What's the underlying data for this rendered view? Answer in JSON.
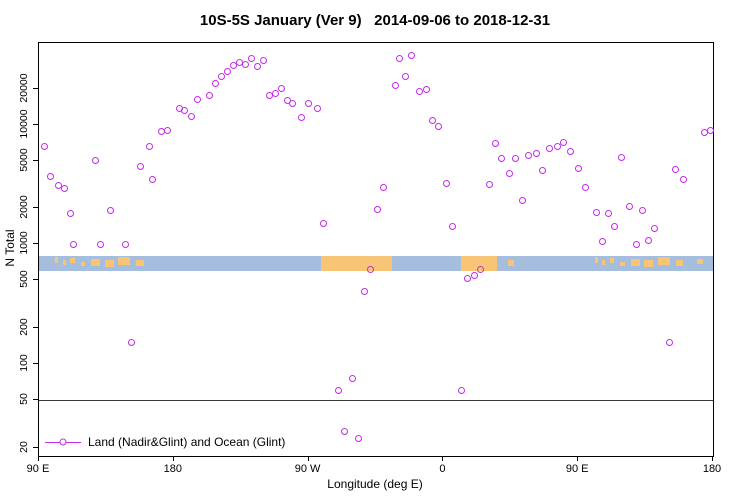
{
  "chart_data": {
    "type": "scatter",
    "title": "10S-5S January (Ver 9)   2014-09-06 to 2018-12-31",
    "xlabel": "Longitude (deg E)",
    "ylabel": "N Total",
    "legend": "Land (Nadir&Glint) and Ocean (Glint)",
    "marker_color": "#c32ce8",
    "log_y": true,
    "grid": false,
    "legend_position": "bottom-left",
    "xlim": [
      90,
      540
    ],
    "ylim": [
      17,
      48000
    ],
    "x_ticks": [
      {
        "pos": 90,
        "label": "90 E"
      },
      {
        "pos": 180,
        "label": "180"
      },
      {
        "pos": 270,
        "label": "90 W"
      },
      {
        "pos": 360,
        "label": "0"
      },
      {
        "pos": 450,
        "label": "90 E"
      },
      {
        "pos": 540,
        "label": "180"
      }
    ],
    "y_ticks": [
      {
        "value": 20,
        "label": "20"
      },
      {
        "value": 50,
        "label": "50"
      },
      {
        "value": 100,
        "label": "100"
      },
      {
        "value": 200,
        "label": "200"
      },
      {
        "value": 500,
        "label": "500"
      },
      {
        "value": 1000,
        "label": "1000"
      },
      {
        "value": 2000,
        "label": "2000"
      },
      {
        "value": 5000,
        "label": "5000"
      },
      {
        "value": 10000,
        "label": "10000"
      },
      {
        "value": 20000,
        "label": "20000"
      }
    ],
    "ref_line": 50,
    "band": {
      "y_from": 600,
      "y_to": 800,
      "ocean_color": "#a5bedd",
      "land_color": "#f8c476",
      "segments": [
        {
          "from": 101,
          "to": 103,
          "h": 0.35,
          "dy": 0.1
        },
        {
          "from": 106,
          "to": 108,
          "h": 0.3,
          "dy": 0.3
        },
        {
          "from": 111,
          "to": 114,
          "h": 0.35,
          "dy": 0.15
        },
        {
          "from": 118,
          "to": 121,
          "h": 0.3,
          "dy": 0.4
        },
        {
          "from": 125,
          "to": 131,
          "h": 0.45,
          "dy": 0.2
        },
        {
          "from": 134,
          "to": 140,
          "h": 0.5,
          "dy": 0.25
        },
        {
          "from": 143,
          "to": 151,
          "h": 0.5,
          "dy": 0.1
        },
        {
          "from": 155,
          "to": 160,
          "h": 0.35,
          "dy": 0.3
        },
        {
          "from": 278,
          "to": 326,
          "h": 1.0,
          "dy": 0
        },
        {
          "from": 372,
          "to": 396,
          "h": 1.0,
          "dy": 0
        },
        {
          "from": 403,
          "to": 407,
          "h": 0.4,
          "dy": 0.3
        },
        {
          "from": 461,
          "to": 463,
          "h": 0.35,
          "dy": 0.1
        },
        {
          "from": 466,
          "to": 468,
          "h": 0.3,
          "dy": 0.3
        },
        {
          "from": 471,
          "to": 474,
          "h": 0.35,
          "dy": 0.15
        },
        {
          "from": 478,
          "to": 481,
          "h": 0.3,
          "dy": 0.4
        },
        {
          "from": 485,
          "to": 491,
          "h": 0.45,
          "dy": 0.2
        },
        {
          "from": 494,
          "to": 500,
          "h": 0.5,
          "dy": 0.25
        },
        {
          "from": 503,
          "to": 511,
          "h": 0.5,
          "dy": 0.1
        },
        {
          "from": 515,
          "to": 520,
          "h": 0.35,
          "dy": 0.3
        },
        {
          "from": 529,
          "to": 533,
          "h": 0.35,
          "dy": 0.2
        }
      ]
    },
    "points": [
      [
        94,
        6500
      ],
      [
        98,
        3700
      ],
      [
        103,
        3100
      ],
      [
        107,
        2900
      ],
      [
        111,
        1800
      ],
      [
        113,
        990
      ],
      [
        128,
        5000
      ],
      [
        131,
        1000
      ],
      [
        138,
        1900
      ],
      [
        148,
        1000
      ],
      [
        152,
        150
      ],
      [
        158,
        4500
      ],
      [
        164,
        6500
      ],
      [
        166,
        3500
      ],
      [
        172,
        8700
      ],
      [
        176,
        8900
      ],
      [
        184,
        13500
      ],
      [
        187,
        13100
      ],
      [
        192,
        11700
      ],
      [
        196,
        16200
      ],
      [
        204,
        17500
      ],
      [
        208,
        22000
      ],
      [
        212,
        25300
      ],
      [
        216,
        27800
      ],
      [
        220,
        31200
      ],
      [
        224,
        33100
      ],
      [
        228,
        32000
      ],
      [
        232,
        35800
      ],
      [
        236,
        30500
      ],
      [
        240,
        34500
      ],
      [
        244,
        17500
      ],
      [
        248,
        18300
      ],
      [
        252,
        20000
      ],
      [
        256,
        16000
      ],
      [
        259,
        15000
      ],
      [
        265,
        11500
      ],
      [
        270,
        15000
      ],
      [
        276,
        13600
      ],
      [
        280,
        1500
      ],
      [
        290,
        60
      ],
      [
        294,
        27
      ],
      [
        299,
        75
      ],
      [
        303,
        24
      ],
      [
        307,
        400
      ],
      [
        311,
        620
      ],
      [
        316,
        1950
      ],
      [
        320,
        3000
      ],
      [
        328,
        21200
      ],
      [
        331,
        35800
      ],
      [
        335,
        25300
      ],
      [
        339,
        38000
      ],
      [
        344,
        18700
      ],
      [
        349,
        19500
      ],
      [
        353,
        10800
      ],
      [
        357,
        9600
      ],
      [
        362,
        3200
      ],
      [
        366,
        1400
      ],
      [
        372,
        60
      ],
      [
        376,
        520
      ],
      [
        381,
        550
      ],
      [
        385,
        620
      ],
      [
        391,
        3150
      ],
      [
        395,
        6900
      ],
      [
        399,
        5200
      ],
      [
        404,
        3900
      ],
      [
        408,
        5200
      ],
      [
        413,
        2300
      ],
      [
        417,
        5500
      ],
      [
        422,
        5700
      ],
      [
        426,
        4100
      ],
      [
        431,
        6300
      ],
      [
        436,
        6600
      ],
      [
        440,
        7100
      ],
      [
        445,
        6000
      ],
      [
        450,
        4300
      ],
      [
        455,
        3000
      ],
      [
        462,
        1850
      ],
      [
        466,
        1050
      ],
      [
        470,
        1800
      ],
      [
        474,
        1400
      ],
      [
        479,
        5300
      ],
      [
        484,
        2050
      ],
      [
        489,
        1000
      ],
      [
        493,
        1900
      ],
      [
        497,
        1080
      ],
      [
        501,
        1350
      ],
      [
        511,
        150
      ],
      [
        515,
        4250
      ],
      [
        520,
        3500
      ],
      [
        534,
        8600
      ],
      [
        538,
        8900
      ]
    ]
  }
}
